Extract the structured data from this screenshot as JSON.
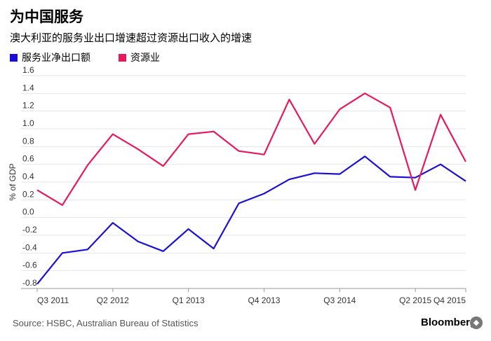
{
  "header": {
    "title": "为中国服务",
    "subtitle": "澳大利亚的服务业出口增速超过资源出口收入的增速"
  },
  "footer": {
    "source": "Source: HSBC, Australian Bureau of Statistics",
    "brand": "Bloomberg"
  },
  "chart_data": {
    "type": "line",
    "title": "为中国服务",
    "subtitle": "澳大利亚的服务业出口增速超过资源出口收入的增速",
    "xlabel": "",
    "ylabel": "% of GDP",
    "ylim": [
      -0.8,
      1.6
    ],
    "yticks": [
      "1.6",
      "1.4",
      "1.2",
      "1.0",
      "0.8",
      "0.6",
      "0.4",
      "0.2",
      "0.0",
      "-0.2",
      "-0.4",
      "-0.6",
      "-0.8"
    ],
    "ytick_values": [
      1.6,
      1.4,
      1.2,
      1.0,
      0.8,
      0.6,
      0.4,
      0.2,
      0.0,
      -0.2,
      -0.4,
      -0.6,
      -0.8
    ],
    "x": [
      "Q3 2011",
      "Q4 2011",
      "Q1 2012",
      "Q2 2012",
      "Q3 2012",
      "Q4 2012",
      "Q1 2013",
      "Q2 2013",
      "Q3 2013",
      "Q4 2013",
      "Q1 2014",
      "Q2 2014",
      "Q3 2014",
      "Q4 2014",
      "Q1 2015",
      "Q2 2015",
      "Q3 2015",
      "Q4 2015"
    ],
    "xtick_labels": [
      {
        "index": 0,
        "label": "Q3 2011"
      },
      {
        "index": 3,
        "label": "Q2 2012"
      },
      {
        "index": 6,
        "label": "Q1 2013"
      },
      {
        "index": 9,
        "label": "Q4 2013"
      },
      {
        "index": 12,
        "label": "Q3 2014"
      },
      {
        "index": 15,
        "label": "Q2 2015"
      },
      {
        "index": 17,
        "label": "Q4 2015"
      }
    ],
    "grid": true,
    "legend_position": "top-left",
    "series": [
      {
        "name": "服务业净出口额",
        "color": "#1a0fd6",
        "values": [
          -0.75,
          -0.4,
          -0.36,
          -0.06,
          -0.27,
          -0.38,
          -0.13,
          -0.35,
          0.16,
          0.27,
          0.43,
          0.5,
          0.49,
          0.69,
          0.46,
          0.45,
          0.6,
          0.41
        ]
      },
      {
        "name": "资源业",
        "color": "#e8195b",
        "values": [
          0.31,
          0.14,
          0.59,
          0.94,
          0.77,
          0.58,
          0.94,
          0.97,
          0.75,
          0.71,
          1.33,
          0.83,
          1.22,
          1.4,
          1.24,
          0.31,
          1.16,
          0.63
        ]
      }
    ]
  }
}
